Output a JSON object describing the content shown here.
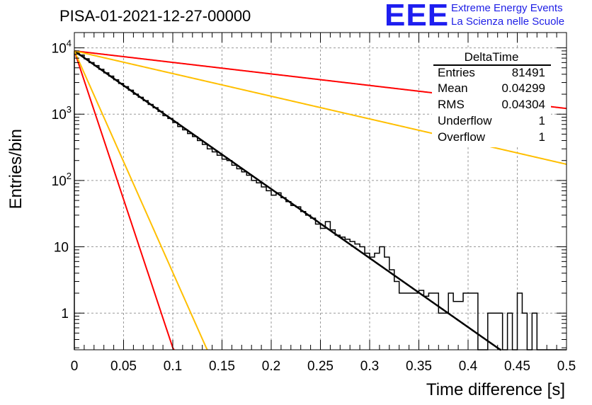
{
  "title": "PISA-01-2021-12-27-00000",
  "logo": {
    "text": "EEE",
    "line1": "Extreme Energy Events",
    "line2": "La Scienza nelle Scuole",
    "color": "#1e1ef0"
  },
  "stats": {
    "title": "DeltaTime",
    "rows": [
      {
        "label": "Entries",
        "value": "81491"
      },
      {
        "label": "Mean",
        "value": "0.04299"
      },
      {
        "label": "RMS",
        "value": "0.04304"
      },
      {
        "label": "Underflow",
        "value": "1"
      },
      {
        "label": "Overflow",
        "value": "1"
      }
    ]
  },
  "chart_data": {
    "type": "histogram",
    "xlabel": "Time difference [s]",
    "ylabel": "Entries/bin",
    "xlim": [
      0,
      0.5
    ],
    "ylim": [
      0.28,
      17000
    ],
    "yscale": "log",
    "grid": true,
    "x_ticks": [
      0,
      0.05,
      0.1,
      0.15,
      0.2,
      0.25,
      0.3,
      0.35,
      0.4,
      0.45,
      0.5
    ],
    "x_tick_labels": [
      "0",
      "0.05",
      "0.1",
      "0.15",
      "0.2",
      "0.25",
      "0.3",
      "0.35",
      "0.4",
      "0.45",
      "0.5"
    ],
    "y_ticks": [
      1,
      10,
      100,
      1000,
      10000
    ],
    "y_tick_labels": [
      {
        "base": "1",
        "exp": ""
      },
      {
        "base": "10",
        "exp": ""
      },
      {
        "base": "10",
        "exp": "2"
      },
      {
        "base": "10",
        "exp": "3"
      },
      {
        "base": "10",
        "exp": "4"
      }
    ],
    "bin_width": 0.005,
    "histogram_values": [
      8500,
      7800,
      6850,
      6000,
      5400,
      4750,
      4200,
      3750,
      3300,
      2900,
      2600,
      2300,
      2000,
      1800,
      1600,
      1400,
      1250,
      1100,
      950,
      860,
      750,
      650,
      580,
      510,
      460,
      400,
      350,
      300,
      270,
      240,
      210,
      200,
      170,
      150,
      135,
      120,
      100,
      92,
      80,
      70,
      60,
      65,
      55,
      48,
      42,
      40,
      34,
      30,
      27,
      22,
      19,
      24,
      18,
      15,
      14,
      13,
      12,
      11,
      10,
      8,
      7,
      8,
      10,
      7,
      4.5,
      3,
      2,
      2,
      2,
      2,
      2.2,
      1.8,
      2,
      2,
      1,
      1,
      2,
      1.5,
      1.5,
      2,
      2,
      2,
      0,
      0,
      1,
      1,
      1,
      0.1,
      1,
      0.1,
      2,
      1,
      0.1,
      1,
      0.1,
      0.1,
      0.1,
      0.1,
      0.1,
      0.1
    ],
    "fits": [
      {
        "color": "#000000",
        "A": 9000,
        "tau": 0.0417
      },
      {
        "color": "#ff0000",
        "A": 9000,
        "tau": 0.0097
      },
      {
        "color": "#ffbf00",
        "A": 9000,
        "tau": 0.013
      },
      {
        "color": "#ff0000",
        "A": 9000,
        "tau": 0.25
      },
      {
        "color": "#ffbf00",
        "A": 9000,
        "tau": 0.127
      }
    ]
  }
}
